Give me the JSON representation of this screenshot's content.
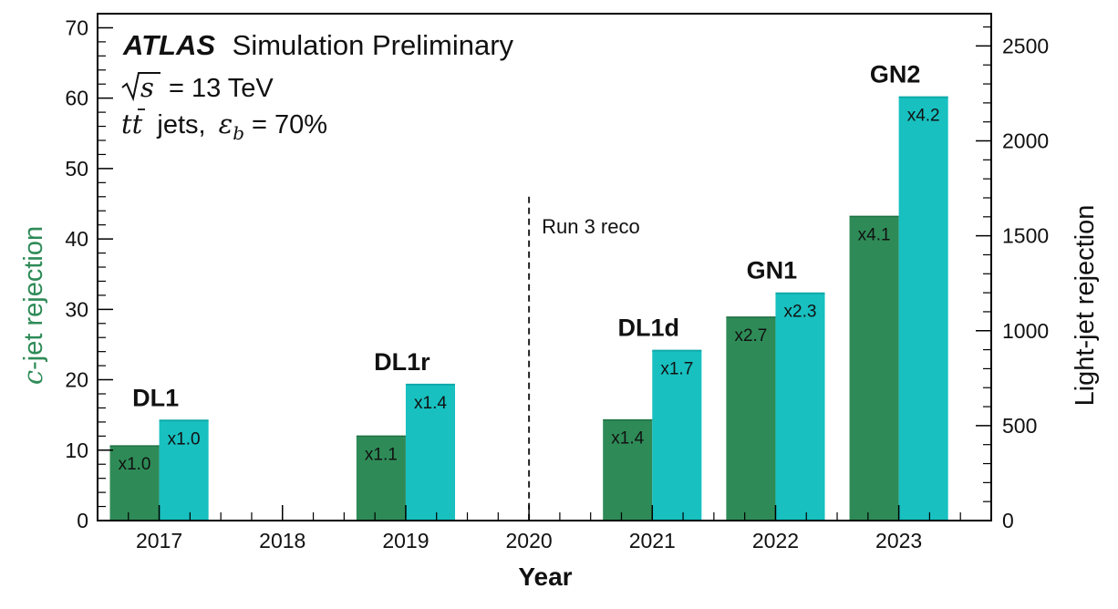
{
  "chart_data": {
    "type": "bar",
    "title": {
      "experiment": "ATLAS",
      "status": "Simulation Preliminary",
      "energy_prefix": "s",
      "energy_value": "= 13 TeV",
      "sample_prefix": "tt",
      "sample_text": "jets,",
      "wp_symbol": "ε",
      "wp_sub": "b",
      "wp_value": "= 70%"
    },
    "xlabel": "Year",
    "ylabel_left": {
      "prefix": "c",
      "text": "-jet rejection",
      "color": "#2e8b57"
    },
    "ylabel_right": {
      "text": "Light-jet rejection",
      "color": "#18c0c0"
    },
    "ylim_left": [
      0,
      72
    ],
    "ylim_right": [
      0,
      2670
    ],
    "x_categories": [
      "2017",
      "2018",
      "2019",
      "2020",
      "2021",
      "2022",
      "2023"
    ],
    "left_ticks": [
      "0",
      "10",
      "20",
      "30",
      "40",
      "50",
      "60",
      "70"
    ],
    "right_ticks": [
      "0",
      "500",
      "1000",
      "1500",
      "2000",
      "2500"
    ],
    "series": [
      {
        "name": "c-jet rejection",
        "axis": "left",
        "color": "#2e8b57"
      },
      {
        "name": "Light-jet rejection",
        "axis": "right",
        "color": "#18c0c0"
      }
    ],
    "points": [
      {
        "algorithm": "DL1",
        "year": 2017,
        "c_rejection": 10.6,
        "c_factor": "x1.0",
        "light_rejection": 527,
        "light_factor": "x1.0"
      },
      {
        "algorithm": "DL1r",
        "year": 2019,
        "c_rejection": 12.0,
        "c_factor": "x1.1",
        "light_rejection": 716,
        "light_factor": "x1.4"
      },
      {
        "algorithm": "DL1d",
        "year": 2021,
        "c_rejection": 14.3,
        "c_factor": "x1.4",
        "light_rejection": 895,
        "light_factor": "x1.7"
      },
      {
        "algorithm": "GN1",
        "year": 2022,
        "c_rejection": 28.9,
        "c_factor": "x2.7",
        "light_rejection": 1197,
        "light_factor": "x2.3"
      },
      {
        "algorithm": "GN2",
        "year": 2023,
        "c_rejection": 43.2,
        "c_factor": "x4.1",
        "light_rejection": 2230,
        "light_factor": "x4.2"
      }
    ],
    "annotation": {
      "text": "Run 3 reco",
      "x": 2020,
      "line_top": 46
    },
    "grid": false,
    "legend": "none"
  }
}
